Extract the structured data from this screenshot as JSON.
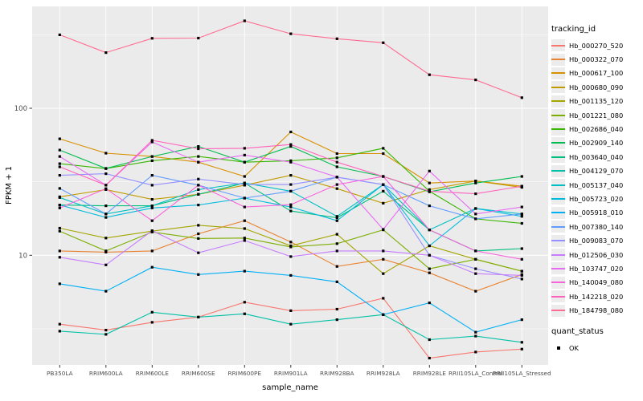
{
  "y_axis": {
    "title": "FPKM + 1",
    "ticks": [
      {
        "label": "100",
        "value": 100
      },
      {
        "label": "10",
        "value": 10
      }
    ]
  },
  "x_axis": {
    "title": "sample_name"
  },
  "legend": {
    "tracking_title": "tracking_id",
    "quant_title": "quant_status",
    "quant_ok_label": "OK"
  },
  "colors": {
    "panel_bg": "#EBEBEB",
    "grid_major": "#FFFFFF",
    "grid_minor": "#FFFFFF",
    "tick_mark": "#333333",
    "tick_label": "#4D4D4D",
    "axis_title": "#000000",
    "marker": "#000000"
  },
  "chart_data": {
    "type": "line",
    "yscale": "log10",
    "ylim": [
      1.8,
      490
    ],
    "xlabel": "sample_name",
    "ylabel": "FPKM + 1",
    "grid": "on",
    "legend_position": "right",
    "marker": "black-square (quant_status OK)",
    "categories": [
      "PB350LA",
      "RRIM600LA",
      "RRIM600LE",
      "RRIM600SE",
      "RRIM600PE",
      "RRIM901LA",
      "RRIM928BA",
      "RRIM928LA",
      "RRIM928LE",
      "RRII105LA_Control",
      "RRII105LA_Stressed"
    ],
    "series": [
      {
        "name": "Hb_000270_520",
        "color": "#F8766D",
        "values": [
          3.4,
          3.1,
          3.5,
          3.8,
          4.8,
          4.2,
          4.3,
          5.1,
          2.0,
          2.2,
          2.3
        ]
      },
      {
        "name": "Hb_000322_070",
        "color": "#EA8331",
        "values": [
          10.7,
          10.5,
          10.7,
          14,
          17.2,
          12.3,
          8.4,
          9.4,
          7.6,
          5.7,
          7.4
        ]
      },
      {
        "name": "Hb_000617_100",
        "color": "#D89000",
        "values": [
          62,
          49.5,
          47,
          43,
          34.4,
          69,
          49.2,
          49.2,
          31,
          32,
          29.5
        ]
      },
      {
        "name": "Hb_000680_090",
        "color": "#C09B00",
        "values": [
          25,
          28,
          24,
          26,
          30,
          35,
          28.4,
          22.6,
          28,
          32,
          29
        ]
      },
      {
        "name": "Hb_001135_120",
        "color": "#A3A500",
        "values": [
          15.3,
          13.1,
          14.6,
          16,
          15.2,
          11.6,
          13.9,
          7.5,
          11.6,
          9.4,
          7.8
        ]
      },
      {
        "name": "Hb_001221_080",
        "color": "#7CAE00",
        "values": [
          14.6,
          10.7,
          14.4,
          13,
          13.1,
          11.4,
          12.0,
          14.9,
          8.1,
          9.4,
          7.8
        ]
      },
      {
        "name": "Hb_002686_040",
        "color": "#39B600",
        "values": [
          42,
          38.9,
          44,
          47,
          43,
          44,
          46,
          53.4,
          27.3,
          17.7,
          16.5
        ]
      },
      {
        "name": "Hb_002909_140",
        "color": "#00BB4E",
        "values": [
          52,
          39,
          47,
          55,
          43,
          55,
          40,
          34.4,
          27,
          31,
          34.4
        ]
      },
      {
        "name": "Hb_003640_040",
        "color": "#00BF7D",
        "values": [
          22,
          21.7,
          21.7,
          26,
          31,
          20,
          18,
          27.3,
          14.9,
          10.7,
          11.1
        ]
      },
      {
        "name": "Hb_004129_070",
        "color": "#00C1A7",
        "values": [
          3.05,
          2.9,
          4.1,
          3.8,
          4.0,
          3.4,
          3.65,
          3.95,
          2.67,
          2.82,
          2.56
        ]
      },
      {
        "name": "Hb_005137_040",
        "color": "#00BFC4",
        "values": [
          24.7,
          19.1,
          21.7,
          28,
          31,
          27.3,
          18.4,
          30.3,
          14.9,
          20.8,
          19.1
        ]
      },
      {
        "name": "Hb_005723_020",
        "color": "#00BADE",
        "values": [
          22,
          18.1,
          21,
          22,
          24.5,
          21.3,
          17.2,
          30.3,
          11.6,
          20.8,
          18.4
        ]
      },
      {
        "name": "Hb_005918_010",
        "color": "#00B0F6",
        "values": [
          6.4,
          5.7,
          8.3,
          7.4,
          7.8,
          7.3,
          6.6,
          3.95,
          4.75,
          3.0,
          3.65
        ]
      },
      {
        "name": "Hb_007380_140",
        "color": "#619CFF",
        "values": [
          28.5,
          19.1,
          35,
          30,
          24.5,
          27.3,
          34,
          30.3,
          21.7,
          17.7,
          19.1
        ]
      },
      {
        "name": "Hb_009083_070",
        "color": "#9590FF",
        "values": [
          35,
          35.9,
          30,
          33,
          30.3,
          30.3,
          34,
          30.3,
          10,
          8.1,
          6.9
        ]
      },
      {
        "name": "Hb_012506_030",
        "color": "#C77CFF",
        "values": [
          9.7,
          8.6,
          14.7,
          10.4,
          12.6,
          9.8,
          10.7,
          10.7,
          10.0,
          7.5,
          7.3
        ]
      },
      {
        "name": "Hb_103747_020",
        "color": "#E76BF3",
        "values": [
          47,
          30,
          59,
          43,
          48,
          43,
          34,
          15,
          37.4,
          19.1,
          21.3
        ]
      },
      {
        "name": "Hb_140049_080",
        "color": "#FA62DB",
        "values": [
          21,
          28.4,
          17.2,
          30,
          21.3,
          22.1,
          30.3,
          34.4,
          14.9,
          10.7,
          9.4
        ]
      },
      {
        "name": "Hb_142218_020",
        "color": "#FF62BC",
        "values": [
          40,
          30,
          60.5,
          53,
          53.4,
          56.7,
          43,
          34.4,
          27.3,
          26.2,
          29.5
        ]
      },
      {
        "name": "Hb_184798_080",
        "color": "#FF6C91",
        "values": [
          316,
          239,
          299,
          300,
          393,
          321,
          297,
          279,
          169,
          156,
          118
        ]
      }
    ]
  }
}
